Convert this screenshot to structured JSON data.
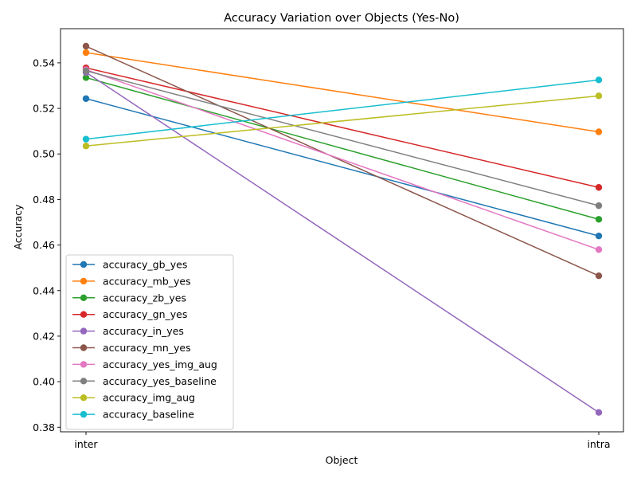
{
  "chart_data": {
    "type": "line",
    "title": "Accuracy Variation over Objects (Yes-No)",
    "xlabel": "Object",
    "ylabel": "Accuracy",
    "categories": [
      "inter",
      "intra"
    ],
    "ylim": [
      0.378,
      0.555
    ],
    "yticks": [
      0.38,
      0.4,
      0.42,
      0.44,
      0.46,
      0.48,
      0.5,
      0.52,
      0.54
    ],
    "ytick_labels": [
      "0.38",
      "0.40",
      "0.42",
      "0.44",
      "0.46",
      "0.48",
      "0.50",
      "0.52",
      "0.54"
    ],
    "grid": false,
    "legend_position": "lower-left",
    "series": [
      {
        "name": "accuracy_gb_yes",
        "color": "#1f77b4",
        "values": [
          0.5243,
          0.464
        ]
      },
      {
        "name": "accuracy_mb_yes",
        "color": "#ff7f0e",
        "values": [
          0.5445,
          0.5097
        ]
      },
      {
        "name": "accuracy_zb_yes",
        "color": "#2ca02c",
        "values": [
          0.5335,
          0.4713
        ]
      },
      {
        "name": "accuracy_gn_yes",
        "color": "#d62728",
        "values": [
          0.5378,
          0.4853
        ]
      },
      {
        "name": "accuracy_in_yes",
        "color": "#9467bd",
        "values": [
          0.5358,
          0.3865
        ]
      },
      {
        "name": "accuracy_mn_yes",
        "color": "#8c564b",
        "values": [
          0.5473,
          0.4465
        ]
      },
      {
        "name": "accuracy_yes_img_aug",
        "color": "#e377c2",
        "values": [
          0.537,
          0.458
        ]
      },
      {
        "name": "accuracy_yes_baseline",
        "color": "#7f7f7f",
        "values": [
          0.5365,
          0.4773
        ]
      },
      {
        "name": "accuracy_img_aug",
        "color": "#bcbd22",
        "values": [
          0.5035,
          0.5255
        ]
      },
      {
        "name": "accuracy_baseline",
        "color": "#17becf",
        "values": [
          0.5065,
          0.5325
        ]
      }
    ]
  }
}
